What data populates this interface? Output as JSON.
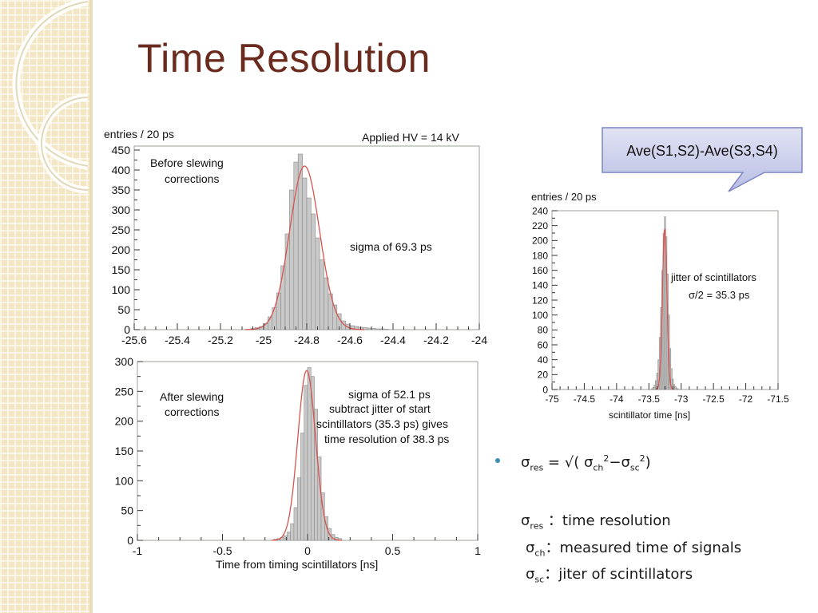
{
  "slide": {
    "title": "Time Resolution",
    "callout": "Ave(S1,S2)-Ave(S3,S4)",
    "notes": {
      "formula": {
        "sym": "σ",
        "res": "res",
        "eq": " = √( σ",
        "ch": "ch",
        "two": "2",
        "minus": "−σ",
        "sc": "sc",
        "close": ")"
      },
      "defs": [
        {
          "sym": "σ",
          "sub": "res",
          "text": " ：time resolution"
        },
        {
          "sym": "σ",
          "sub": "ch",
          "text": "：measured time of signals"
        },
        {
          "sym": "σ",
          "sub": "sc",
          "text": "：jiter of scintillators"
        }
      ]
    }
  },
  "colors": {
    "title": "#6b2a1e",
    "hist_fill": "#c8c8c8",
    "fit": "#d9534f",
    "callout_bg": "#c9cde9",
    "callout_border": "#7e86c2",
    "bullet": "#3b8fb3"
  },
  "chart_data": [
    {
      "type": "bar",
      "ylabel": "entries / 20 ps",
      "annotations": [
        "Applied HV = 14 kV",
        "Before slewing",
        "corrections",
        "sigma of 69.3 ps"
      ],
      "xlim": [
        -25.6,
        -24.0
      ],
      "ylim": [
        0,
        460
      ],
      "xticks": [
        -25.6,
        -25.4,
        -25.2,
        -25.0,
        -24.8,
        -24.6,
        -24.4,
        -24.2,
        -24.0
      ],
      "xtick_labels": [
        "-25.6",
        "-25.4",
        "-25.2",
        "-25",
        "-24.8",
        "-24.6",
        "-24.4",
        "-24.2",
        "-24"
      ],
      "yticks": [
        0,
        50,
        100,
        150,
        200,
        250,
        300,
        350,
        400,
        450
      ],
      "bin_start": -25.08,
      "bin_width": 0.02,
      "values": [
        1,
        3,
        5,
        8,
        15,
        32,
        55,
        92,
        160,
        240,
        350,
        420,
        440,
        380,
        330,
        290,
        230,
        175,
        130,
        90,
        62,
        40,
        22,
        14,
        10,
        8,
        6,
        5,
        4,
        3,
        2,
        2,
        1
      ],
      "fit": {
        "mean": -24.81,
        "sigma": 0.0693,
        "amp": 410
      }
    },
    {
      "type": "bar",
      "xlabel": "Time from timing scintillators [ns]",
      "annotations": [
        "After slewing",
        "corrections",
        "sigma of 52.1 ps",
        "subtract jitter of start",
        "scintillators (35.3 ps) gives",
        "time resolution of 38.3 ps"
      ],
      "xlim": [
        -1,
        1
      ],
      "ylim": [
        0,
        300
      ],
      "xticks": [
        -1,
        -0.5,
        0,
        0.5,
        1
      ],
      "xtick_labels": [
        "-1",
        "-0.5",
        "0",
        "0.5",
        "1"
      ],
      "yticks": [
        0,
        50,
        100,
        150,
        200,
        250,
        300
      ],
      "bin_start": -0.2,
      "bin_width": 0.02,
      "values": [
        2,
        3,
        5,
        8,
        14,
        28,
        55,
        105,
        180,
        260,
        290,
        275,
        220,
        140,
        80,
        40,
        20,
        10,
        5,
        3
      ],
      "fit": {
        "mean": -0.005,
        "sigma": 0.0521,
        "amp": 285
      }
    },
    {
      "type": "bar",
      "ylabel": "entries / 20 ps",
      "xlabel": "scintillator time [ns]",
      "annotations": [
        "jitter of scintillators",
        "σ/2 = 35.3 ps"
      ],
      "xlim": [
        -75,
        -71.5
      ],
      "ylim": [
        0,
        240
      ],
      "xticks": [
        -75,
        -74.5,
        -74,
        -73.5,
        -73,
        -72.5,
        -72,
        -71.5
      ],
      "xtick_labels": [
        "-75",
        "-74.5",
        "-74",
        "-73.5",
        "-73",
        "-72.5",
        "-72",
        "-71.5"
      ],
      "yticks": [
        0,
        20,
        40,
        60,
        80,
        100,
        120,
        140,
        160,
        180,
        200,
        220,
        240
      ],
      "bin_start": -73.46,
      "bin_width": 0.02,
      "values": [
        1,
        3,
        6,
        12,
        22,
        40,
        70,
        110,
        160,
        210,
        232,
        205,
        155,
        100,
        55,
        28,
        14,
        7,
        4,
        2,
        1
      ],
      "fit": {
        "mean": -73.255,
        "sigma": 0.0353,
        "amp": 215
      }
    }
  ]
}
